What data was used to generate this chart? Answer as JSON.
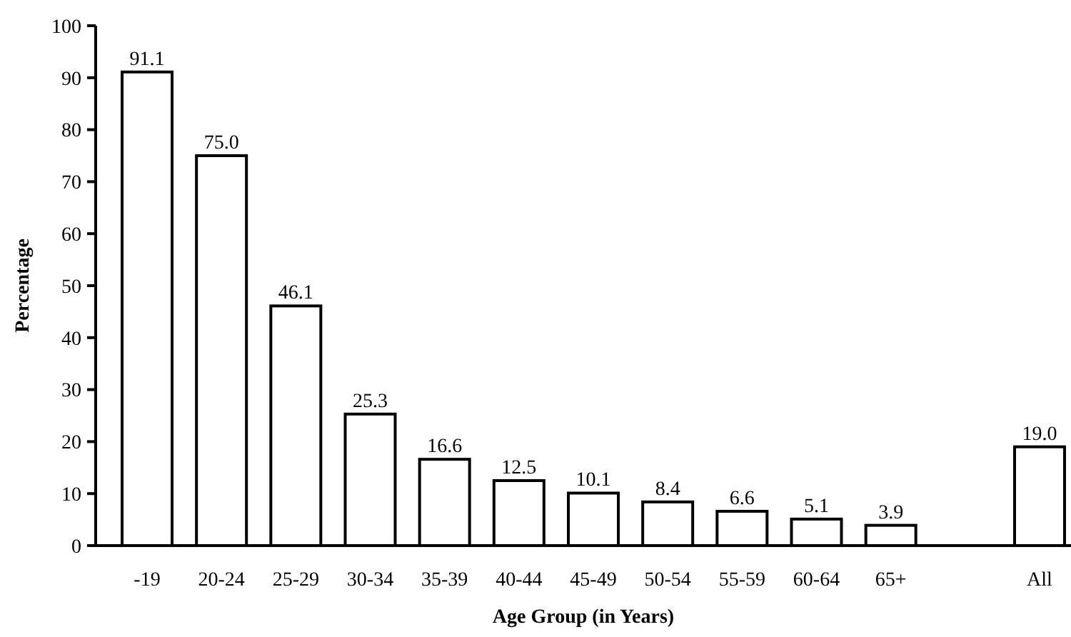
{
  "chart_data": {
    "type": "bar",
    "xlabel": "Age Group (in Years)",
    "ylabel": "Percentage",
    "categories": [
      "-19",
      "20-24",
      "25-29",
      "30-34",
      "35-39",
      "40-44",
      "45-49",
      "50-54",
      "55-59",
      "60-64",
      "65+",
      null,
      "All"
    ],
    "values": [
      91.1,
      75.0,
      46.1,
      25.3,
      16.6,
      12.5,
      10.1,
      8.4,
      6.6,
      5.1,
      3.9,
      null,
      19.0
    ],
    "value_labels": [
      "91.1",
      "75.0",
      "46.1",
      "25.3",
      "16.6",
      "12.5",
      "10.1",
      "8.4",
      "6.6",
      "5.1",
      "3.9",
      null,
      "19.0"
    ],
    "color": "#ffffff",
    "ylim": [
      0,
      100
    ],
    "yticks": [
      0,
      10,
      20,
      30,
      40,
      50,
      60,
      70,
      80,
      90,
      100
    ],
    "grid": false
  }
}
